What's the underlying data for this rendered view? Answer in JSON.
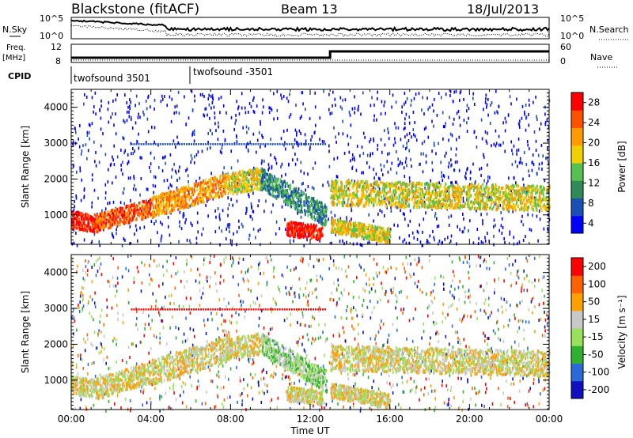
{
  "header": {
    "title": "Blackstone (fitACF)",
    "beam": "Beam 13",
    "date": "18/Jul/2013"
  },
  "top_panels": {
    "nsky_label": "N.Sky",
    "nsky_ticks": [
      "10^5",
      "10^0"
    ],
    "nsearch_label": "N.Search",
    "nsearch_ticks": [
      "10^5",
      "10^0"
    ],
    "freq_label": "Freq.",
    "freq_unit": "[MHz]",
    "freq_ticks": [
      "12",
      "8"
    ],
    "nave_label": "Nave",
    "nave_ticks": [
      "60",
      "0"
    ],
    "cpid_label": "CPID",
    "cpid_segments": [
      "twofsound 3501",
      "twofsound -3501"
    ]
  },
  "colors": {
    "power": [
      "#0000ff",
      "#1a4fb4",
      "#2e8b57",
      "#55c24f",
      "#f0d000",
      "#ff9a00",
      "#ff5000",
      "#ff0000"
    ],
    "velocity": [
      "#1010c0",
      "#2a6ad8",
      "#30b030",
      "#9be05a",
      "#c8c8c8",
      "#ffa000",
      "#ff6000",
      "#ff0000"
    ]
  },
  "chart_data": [
    {
      "type": "heatmap",
      "name": "power",
      "title": "",
      "xlabel": "",
      "ylabel": "Slant Range [km]",
      "x_ticks": [
        "00:00",
        "04:00",
        "08:00",
        "12:00",
        "16:00",
        "20:00",
        "00:00"
      ],
      "xlim": [
        0,
        24
      ],
      "ylim": [
        180,
        4500
      ],
      "y_ticks": [
        1000,
        2000,
        3000,
        4000
      ],
      "colorbar_label": "Power [dB]",
      "colorbar_ticks": [
        "28",
        "24",
        "20",
        "16",
        "12",
        "8",
        "4"
      ],
      "scatter_bands": [
        {
          "t0": 0.0,
          "t1": 1.2,
          "r0": 900,
          "r1": 800,
          "width": 250,
          "level": 7
        },
        {
          "t0": 1.2,
          "t1": 4.0,
          "r0": 800,
          "r1": 1250,
          "width": 250,
          "level": 6
        },
        {
          "t0": 4.0,
          "t1": 7.8,
          "r0": 1250,
          "r1": 1900,
          "width": 300,
          "level": 5
        },
        {
          "t0": 7.8,
          "t1": 9.5,
          "r0": 1900,
          "r1": 2050,
          "width": 300,
          "level": 4
        },
        {
          "t0": 9.5,
          "t1": 12.8,
          "r0": 2050,
          "r1": 1000,
          "width": 300,
          "level": 2
        },
        {
          "t0": 10.8,
          "t1": 12.6,
          "r0": 650,
          "r1": 550,
          "width": 200,
          "level": 7
        },
        {
          "t0": 13.0,
          "t1": 24.0,
          "r0": 1650,
          "r1": 1500,
          "width": 350,
          "level": 4
        },
        {
          "t0": 13.0,
          "t1": 16.0,
          "r0": 750,
          "r1": 450,
          "width": 200,
          "level": 4
        }
      ],
      "lines": [
        {
          "t0": 3.0,
          "t1": 12.8,
          "range": 3000,
          "level": 1
        }
      ]
    },
    {
      "type": "heatmap",
      "name": "velocity",
      "title": "",
      "xlabel": "Time UT",
      "ylabel": "Slant Range [km]",
      "x_ticks": [
        "00:00",
        "04:00",
        "08:00",
        "12:00",
        "16:00",
        "20:00",
        "00:00"
      ],
      "xlim": [
        0,
        24
      ],
      "ylim": [
        180,
        4500
      ],
      "y_ticks": [
        1000,
        2000,
        3000,
        4000
      ],
      "colorbar_label": "Velocity [m s⁻¹]",
      "colorbar_ticks": [
        "200",
        "100",
        "50",
        "15",
        "-15",
        "-50",
        "-100",
        "-200"
      ],
      "scatter_bands": [
        {
          "t0": 0.0,
          "t1": 1.2,
          "r0": 900,
          "r1": 800,
          "width": 250,
          "level": 4
        },
        {
          "t0": 1.2,
          "t1": 4.0,
          "r0": 800,
          "r1": 1250,
          "width": 300,
          "level": 4
        },
        {
          "t0": 4.0,
          "t1": 7.8,
          "r0": 1250,
          "r1": 1900,
          "width": 350,
          "level": 4
        },
        {
          "t0": 7.8,
          "t1": 9.5,
          "r0": 1900,
          "r1": 2050,
          "width": 300,
          "level": 4
        },
        {
          "t0": 9.5,
          "t1": 12.8,
          "r0": 2050,
          "r1": 1000,
          "width": 300,
          "level": 3
        },
        {
          "t0": 10.8,
          "t1": 12.6,
          "r0": 650,
          "r1": 550,
          "width": 200,
          "level": 4
        },
        {
          "t0": 13.0,
          "t1": 24.0,
          "r0": 1650,
          "r1": 1500,
          "width": 350,
          "level": 4
        },
        {
          "t0": 13.0,
          "t1": 16.0,
          "r0": 750,
          "r1": 450,
          "width": 200,
          "level": 4
        }
      ],
      "lines": [
        {
          "t0": 3.0,
          "t1": 12.8,
          "range": 3000,
          "level": 7
        }
      ]
    }
  ]
}
